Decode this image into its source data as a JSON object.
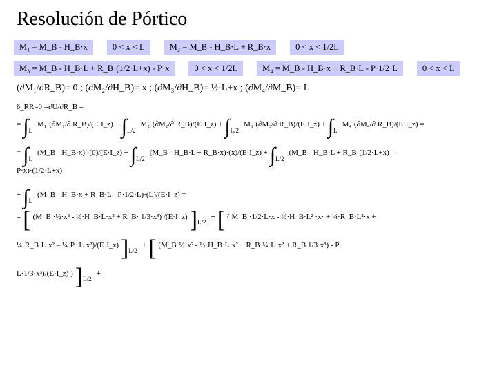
{
  "title": "Resolución de Pórtico",
  "colors": {
    "chip_bg": "#ccccff",
    "text": "#000000",
    "bg": "#ffffff"
  },
  "fonts": {
    "title_pt": 28,
    "chip_pt": 12.5,
    "deriv_pt": 14,
    "body_pt": 11
  },
  "row1": {
    "c1": "M₁ = M_B - H_B·x",
    "c2": "0 < x < L",
    "c3": "M₂ = M_B - H_B·L + R_B·x",
    "c4": "0 < x < 1/2L"
  },
  "row2": {
    "c1": "M₃ = M_B - H_B·L + R_B·(1/2·L+x) - P·x",
    "c2": "0 < x < 1/2L",
    "c3": "M₄ = M_B - H_B·x + R_B·L - P·1/2·L",
    "c4": "0 < x < L"
  },
  "deriv": "(∂M₁/∂R_B)= 0 ; (∂M₂/∂H_B)= x ; (∂M₃/∂H_B)= ½·L+x ; (∂M₄/∂M_B)= L",
  "line_delta": "δ_RR=0 =∂U/∂R_B =",
  "line_a1": "=",
  "line_a2": "M₁·(∂M₁/∂ R_B)/(E·I_z) +",
  "line_a3": "M₂·(∂M₂/∂ R_B)/(E·I_z) +",
  "line_a4": "M₃·(∂M₃/∂ R_B)/(E·I_z) +",
  "line_a5": "M₄·(∂M₄/∂ R_B)/(E·I_z) =",
  "line_b1": "=",
  "line_b2": "(M_B - H_B·x) ·(0)/(E·I_z) +",
  "line_b3": "(M_B - H_B·L + R_B·x)·(x)/(E·I_z) +",
  "line_b4": "(M_B - H_B·L + R_B·(1/2·L+x) -",
  "line_b_tail": "P·x)·(1/2·L+x)",
  "line_c1": "+",
  "line_c2": "(M_B - H_B·x + R_B·L - P·1/2·L)·(L)/(E·I_z) =",
  "line_d1": " =",
  "line_d2": "(M_B ·½·x² - ½·H_B·L·x² + R_B· 1/3·x³) /(E·I_z)",
  "line_d2b": " +",
  "line_d3": "( M_B ·1/2·L·x - ½·H_B·L² ·x· + ¼·R_B·L²·x +",
  "line_e1": "¼·R_B·L·x² – ¼·P· L·x²)/(E·I_z)",
  "line_e1b": " +",
  "line_e2": "(M_B·½·x² - ½·H_B·L·x² + R_B·¼·L·x² + R_B 1/3·x³) - P·",
  "line_f": "L·1/3·x³)/(E·I_z) )",
  "line_f2": " +",
  "lim_L": "L",
  "lim_L2": "L/2"
}
